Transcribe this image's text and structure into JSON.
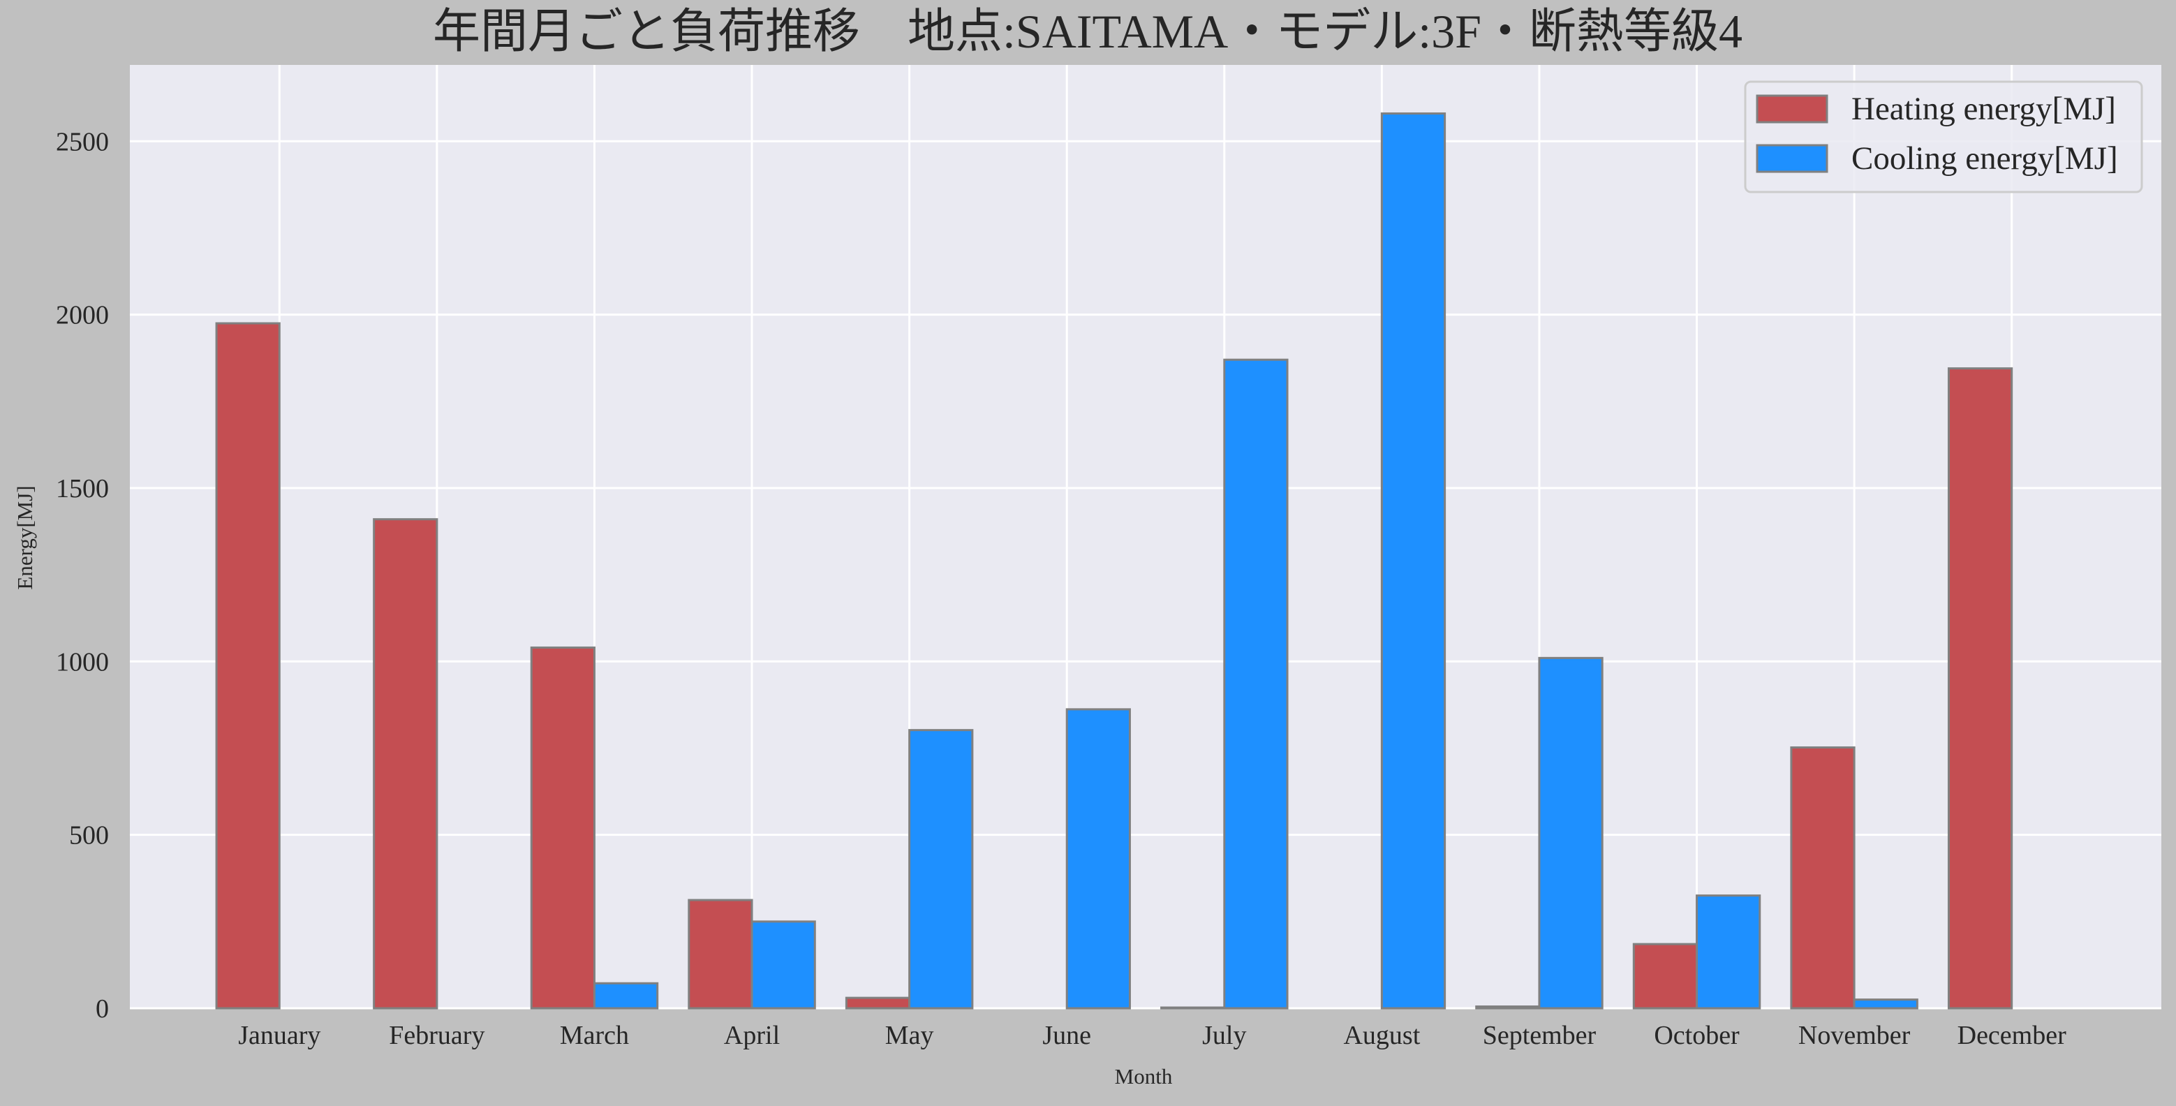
{
  "chart_data": {
    "type": "bar",
    "title": "年間月ごと負荷推移　地点:SAITAMA・モデル:3F・断熱等級4",
    "xlabel": "Month",
    "ylabel": "Energy[MJ]",
    "ylim": [
      0,
      2720
    ],
    "xlim": [
      -0.95,
      11.95
    ],
    "yticks": [
      0,
      500,
      1000,
      1500,
      2000,
      2500
    ],
    "grid": true,
    "legend_position": "top-right",
    "categories": [
      "January",
      "February",
      "March",
      "April",
      "May",
      "June",
      "July",
      "August",
      "September",
      "October",
      "November",
      "December"
    ],
    "series": [
      {
        "name": "Heating energy[MJ]",
        "color": "#c44e52",
        "values": [
          1975,
          1410,
          1040,
          312,
          30,
          0,
          2,
          0,
          5,
          185,
          752,
          1845
        ]
      },
      {
        "name": "Cooling energy[MJ]",
        "color": "#1e90ff",
        "values": [
          0,
          0,
          72,
          250,
          802,
          862,
          1870,
          2580,
          1010,
          325,
          25,
          0
        ]
      }
    ],
    "colors": {
      "background": "#c0c0c0",
      "plot_background": "#eaeaf2",
      "grid": "#ffffff",
      "bar_edge": "#808080"
    }
  }
}
